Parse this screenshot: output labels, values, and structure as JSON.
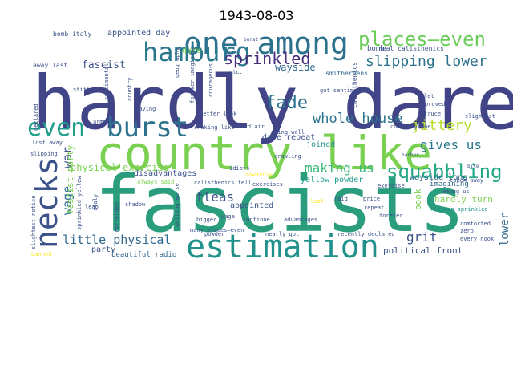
{
  "figure": {
    "title": "1943-08-03"
  },
  "word_cloud": {
    "words": [
      {
        "text": "hardly dare",
        "color": "#414487"
      },
      {
        "text": "fascists",
        "color": "#2a9d7c"
      },
      {
        "text": "country like",
        "color": "#7ad151"
      },
      {
        "text": "one among",
        "color": "#2c728e"
      },
      {
        "text": "hamburg",
        "color": "#2a788e"
      },
      {
        "text": "places—even",
        "color": "#6ccd5a"
      },
      {
        "text": "estimation",
        "color": "#21918c"
      },
      {
        "text": "necks",
        "color": "#3b528b"
      },
      {
        "text": "even",
        "color": "#1f9e89"
      },
      {
        "text": "burst",
        "color": "#2c728e"
      },
      {
        "text": "squabbling",
        "color": "#22a884"
      },
      {
        "text": "sprinkled",
        "color": "#472d7b"
      },
      {
        "text": "fade",
        "color": "#2c728e"
      },
      {
        "text": "slipping lower",
        "color": "#2c728e"
      },
      {
        "text": "whole house",
        "color": "#2c728e"
      },
      {
        "text": "jittery",
        "color": "#b5de2b"
      },
      {
        "text": "gives us",
        "color": "#2a788e"
      },
      {
        "text": "making us",
        "color": "#35b779"
      },
      {
        "text": "little physical",
        "color": "#31688e"
      },
      {
        "text": "grit",
        "color": "#3b528b"
      },
      {
        "text": "fleas",
        "color": "#3b528b"
      },
      {
        "text": "wage",
        "color": "#2c728e"
      },
      {
        "text": "war",
        "color": "#3b528b"
      },
      {
        "text": "lower",
        "color": "#31688e"
      },
      {
        "text": "physical exercise",
        "color": "#7ad151"
      },
      {
        "text": "fascist",
        "color": "#3b528b"
      },
      {
        "text": "wayside",
        "color": "#31688e"
      },
      {
        "text": "appointed day",
        "color": "#3b528b"
      },
      {
        "text": "bomb italy",
        "color": "#3b528b"
      },
      {
        "text": "away last",
        "color": "#3b528b"
      },
      {
        "text": "dare repeat",
        "color": "#3b528b"
      },
      {
        "text": "joined",
        "color": "#21918c"
      },
      {
        "text": "yellow powder",
        "color": "#1f9e89"
      },
      {
        "text": "disadvantages",
        "color": "#3b528b"
      },
      {
        "text": "appointed",
        "color": "#3b528b"
      },
      {
        "text": "party",
        "color": "#3b528b"
      },
      {
        "text": "political front",
        "color": "#3b528b"
      },
      {
        "text": "beautiful radio",
        "color": "#31688e"
      },
      {
        "text": "hardly turn",
        "color": "#7ad151"
      },
      {
        "text": "imagining",
        "color": "#31688e"
      },
      {
        "text": "wayside long",
        "color": "#31688e"
      },
      {
        "text": "real calisthenics",
        "color": "#3b528b"
      },
      {
        "text": "calisthenics",
        "color": "#3b528b"
      },
      {
        "text": "bomb",
        "color": "#3b528b"
      },
      {
        "text": "fascist party",
        "color": "#7ad151"
      },
      {
        "text": "book",
        "color": "#7ad151"
      },
      {
        "text": "dare",
        "color": "#7ad151"
      },
      {
        "text": "etc.",
        "color": "#3b528b"
      },
      {
        "text": "burst",
        "color": "#3b528b"
      },
      {
        "text": "stiff",
        "color": "#3b528b"
      },
      {
        "text": "smithereens",
        "color": "#31688e"
      },
      {
        "text": "got sentimental",
        "color": "#3b528b"
      },
      {
        "text": "going well",
        "color": "#3b528b"
      },
      {
        "text": "third air",
        "color": "#3b528b"
      },
      {
        "text": "shaking like",
        "color": "#3b528b"
      },
      {
        "text": "better look",
        "color": "#3b528b"
      },
      {
        "text": "cowardly one",
        "color": "#3b528b"
      },
      {
        "text": "harbor",
        "color": "#3b528b"
      },
      {
        "text": "bite",
        "color": "#3b528b"
      },
      {
        "text": "crawling",
        "color": "#3b528b"
      },
      {
        "text": "idiots",
        "color": "#3b528b"
      },
      {
        "text": "cowardly",
        "color": "#fde725"
      },
      {
        "text": "always said",
        "color": "#7ad151"
      },
      {
        "text": "calisthenics fell",
        "color": "#3b528b"
      },
      {
        "text": "exercises",
        "color": "#3b528b"
      },
      {
        "text": "leaf",
        "color": "#fde725"
      },
      {
        "text": "raid",
        "color": "#3b528b"
      },
      {
        "text": "price",
        "color": "#3b528b"
      },
      {
        "text": "exercise",
        "color": "#3b528b"
      },
      {
        "text": "repeat",
        "color": "#3b528b"
      },
      {
        "text": "forever",
        "color": "#3b528b"
      },
      {
        "text": "kleiman sprinkled",
        "color": "#21918c"
      },
      {
        "text": "among us",
        "color": "#3b528b"
      },
      {
        "text": "comforted",
        "color": "#3b528b"
      },
      {
        "text": "zero",
        "color": "#3b528b"
      },
      {
        "text": "every nook",
        "color": "#3b528b"
      },
      {
        "text": "slightest",
        "color": "#3b528b"
      },
      {
        "text": "truce",
        "color": "#3b528b"
      },
      {
        "text": "proved",
        "color": "#3b528b"
      },
      {
        "text": "taken away",
        "color": "#3b528b"
      },
      {
        "text": "let",
        "color": "#3b528b"
      },
      {
        "text": "slightest notice",
        "color": "#3b528b"
      },
      {
        "text": "slipping",
        "color": "#3b528b"
      },
      {
        "text": "lost away",
        "color": "#3b528b"
      },
      {
        "text": "declared",
        "color": "#3b528b"
      },
      {
        "text": "army",
        "color": "#3b528b"
      },
      {
        "text": "paying",
        "color": "#3b528b"
      },
      {
        "text": "leap",
        "color": "#3b528b"
      },
      {
        "text": "shadow",
        "color": "#3b528b"
      },
      {
        "text": "bigger",
        "color": "#3b528b"
      },
      {
        "text": "many places—even",
        "color": "#3b528b"
      },
      {
        "text": "powder",
        "color": "#3b528b"
      },
      {
        "text": "continue",
        "color": "#3b528b"
      },
      {
        "text": "advantages",
        "color": "#3b528b"
      },
      {
        "text": "nearly got",
        "color": "#3b528b"
      },
      {
        "text": "recently declared",
        "color": "#3b528b"
      },
      {
        "text": "banned",
        "color": "#fde725"
      },
      {
        "text": "italy",
        "color": "#3b528b"
      },
      {
        "text": "sprinkled yellow",
        "color": "#3b528b"
      },
      {
        "text": "rotterdam",
        "color": "#3b528b"
      },
      {
        "text": "getting worse",
        "color": "#3b528b"
      },
      {
        "text": "forever imagining",
        "color": "#3b528b"
      },
      {
        "text": "geography",
        "color": "#3b528b"
      },
      {
        "text": "courageous",
        "color": "#3b528b"
      },
      {
        "text": "wage",
        "color": "#3b528b"
      },
      {
        "text": "bang",
        "color": "#3b528b"
      },
      {
        "text": "sentimental",
        "color": "#3b528b"
      },
      {
        "text": "country",
        "color": "#3b528b"
      }
    ]
  }
}
